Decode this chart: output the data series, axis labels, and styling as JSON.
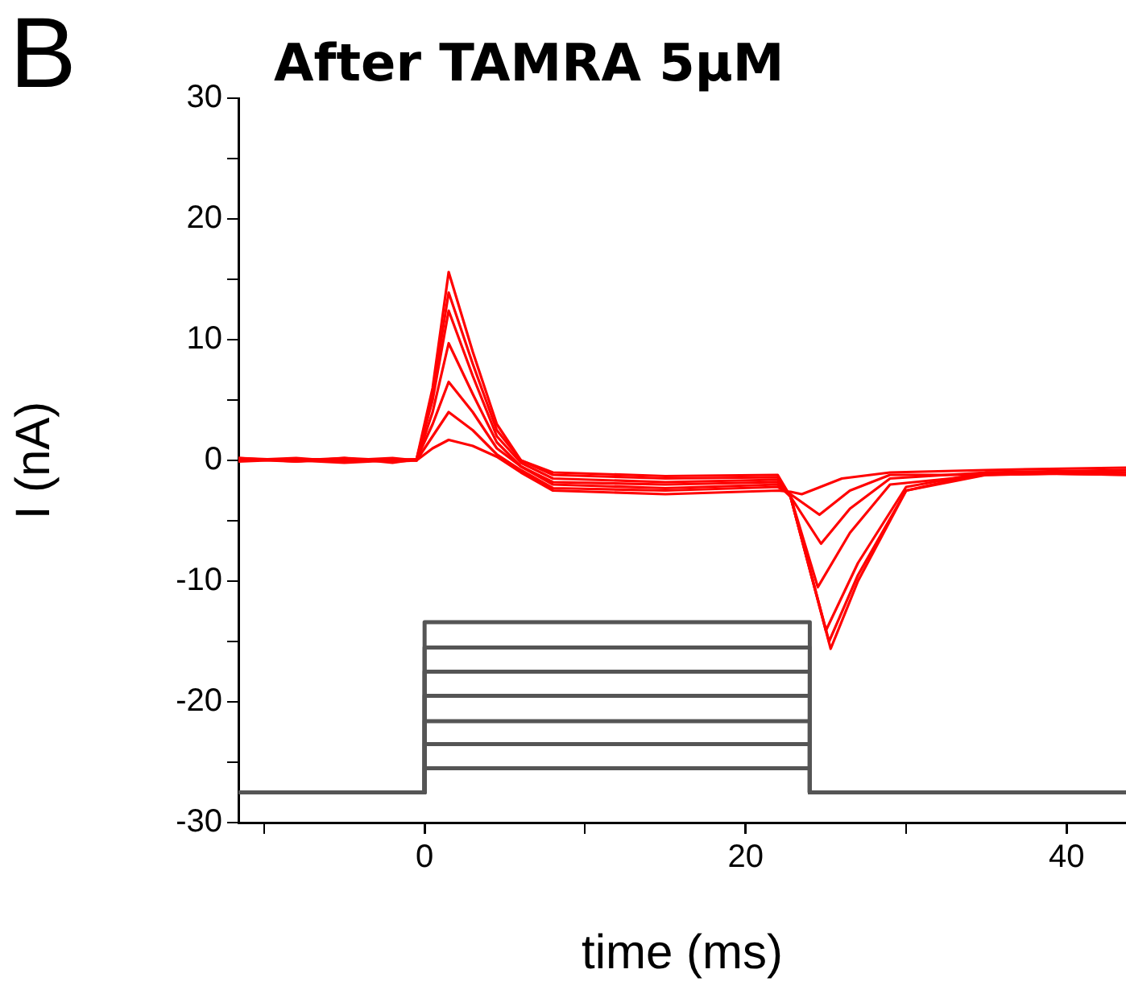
{
  "chart_data": {
    "type": "line",
    "title": "After TAMRA 5μM",
    "annotations": [
      "B"
    ],
    "xlabel": "time (ms)",
    "ylabel": "I (nA)",
    "xlim": [
      -11.6,
      43.7
    ],
    "xticks": [
      {
        "value": -10,
        "label": null
      },
      0,
      {
        "value": 10,
        "label": null
      },
      20,
      {
        "value": 30,
        "label": null
      },
      40
    ],
    "ylim": [
      -30,
      30
    ],
    "yticks": [
      -30,
      {
        "value": -25,
        "label": null
      },
      -20,
      {
        "value": -15,
        "label": null
      },
      -10,
      {
        "value": -5,
        "label": null
      },
      0,
      {
        "value": 5,
        "label": null
      },
      10,
      {
        "value": 15,
        "label": null
      },
      20,
      {
        "value": 25,
        "label": null
      },
      30
    ],
    "grid": false,
    "legend": false,
    "marker": "none",
    "line_style": "solid",
    "series": [
      {
        "color": "#ff0000",
        "x": [
          -11.6,
          -8,
          -5,
          -2,
          -0.5,
          0.5,
          1.5,
          3,
          4.5,
          6,
          8,
          15,
          22,
          22.8,
          25.3,
          27,
          30,
          35,
          43.7
        ],
        "values": [
          0.2,
          -0.1,
          0.2,
          0,
          0.1,
          6,
          15.6,
          9,
          3,
          0,
          -1,
          -1.3,
          -1.2,
          -3,
          -15.6,
          -10,
          -2.5,
          -1,
          -0.8
        ]
      },
      {
        "color": "#ff0000",
        "x": [
          -11.6,
          -8,
          -5,
          -2,
          -0.5,
          0.5,
          1.5,
          3,
          4.5,
          6,
          8,
          15,
          22,
          22.8,
          25.2,
          27,
          30,
          35,
          43.7
        ],
        "values": [
          0,
          0.2,
          -0.1,
          0.1,
          0,
          5.5,
          13.9,
          8,
          2.5,
          0,
          -1.2,
          -1.5,
          -1.4,
          -3,
          -15,
          -9.5,
          -2.5,
          -1.2,
          -1
        ]
      },
      {
        "color": "#ff0000",
        "x": [
          -11.6,
          -8,
          -5,
          -2,
          -0.5,
          0.5,
          1.5,
          3,
          4.5,
          6,
          8,
          15,
          22,
          22.8,
          25,
          27,
          30,
          35,
          43.7
        ],
        "values": [
          0.1,
          0,
          0.2,
          -0.2,
          0.1,
          5,
          12.4,
          7,
          2,
          -0.2,
          -1.5,
          -1.8,
          -1.6,
          -3,
          -14.1,
          -8.5,
          -2.2,
          -1,
          -1.2
        ]
      },
      {
        "color": "#ff0000",
        "x": [
          -11.6,
          -8,
          -5,
          -2,
          -0.5,
          0.5,
          1.5,
          3,
          4.5,
          6,
          8,
          15,
          22,
          22.8,
          24.5,
          26.5,
          29,
          35,
          43.7
        ],
        "values": [
          -0.1,
          0.1,
          0,
          0.2,
          0,
          4,
          9.7,
          5.5,
          1.5,
          -0.5,
          -1.8,
          -2,
          -1.8,
          -3,
          -10.5,
          -6,
          -2,
          -1.2,
          -0.8
        ]
      },
      {
        "color": "#ff0000",
        "x": [
          -11.6,
          -8,
          -5,
          -2,
          -0.5,
          0.5,
          1.5,
          3,
          4.5,
          6,
          8,
          15,
          22,
          22.8,
          24.7,
          26.5,
          29,
          35,
          43.7
        ],
        "values": [
          0.2,
          0,
          -0.2,
          0,
          0.1,
          3,
          6.5,
          4,
          1,
          -0.5,
          -2,
          -2.3,
          -2,
          -3,
          -6.9,
          -4,
          -1.5,
          -1,
          -1.2
        ]
      },
      {
        "color": "#ff0000",
        "x": [
          -11.6,
          -8,
          -5,
          -2,
          -0.5,
          0.5,
          1.5,
          3,
          4.5,
          6,
          8,
          15,
          22,
          22.8,
          24.6,
          26.5,
          29,
          35,
          43.7
        ],
        "values": [
          0,
          0.1,
          0.1,
          -0.1,
          0,
          2,
          4,
          2.5,
          0.5,
          -0.8,
          -2.3,
          -2.5,
          -2.2,
          -2.8,
          -4.5,
          -2.5,
          -1.2,
          -1.2,
          -1
        ]
      },
      {
        "color": "#ff0000",
        "x": [
          -11.6,
          -8,
          -5,
          -2,
          -0.5,
          0.5,
          1.5,
          3,
          4.5,
          6,
          8,
          15,
          22,
          22.8,
          23.5,
          26,
          29,
          35,
          43.7
        ],
        "values": [
          0.1,
          -0.1,
          0.1,
          0,
          0,
          1,
          1.7,
          1.2,
          0.3,
          -1,
          -2.5,
          -2.8,
          -2.5,
          -2.6,
          -2.8,
          -1.5,
          -1,
          -0.8,
          -0.6
        ]
      },
      {
        "color": "#555555",
        "x": [
          -11.6,
          0,
          0,
          24,
          24,
          43.7
        ],
        "values": [
          -27.5,
          -27.5,
          -13.4,
          -13.4,
          -27.5,
          -27.5
        ]
      },
      {
        "color": "#555555",
        "x": [
          -11.6,
          0,
          0,
          24,
          24,
          43.7
        ],
        "values": [
          -27.5,
          -27.5,
          -15.5,
          -15.5,
          -27.5,
          -27.5
        ]
      },
      {
        "color": "#555555",
        "x": [
          -11.6,
          0,
          0,
          24,
          24,
          43.7
        ],
        "values": [
          -27.5,
          -27.5,
          -17.5,
          -17.5,
          -27.5,
          -27.5
        ]
      },
      {
        "color": "#555555",
        "x": [
          -11.6,
          0,
          0,
          24,
          24,
          43.7
        ],
        "values": [
          -27.5,
          -27.5,
          -19.5,
          -19.5,
          -27.5,
          -27.5
        ]
      },
      {
        "color": "#555555",
        "x": [
          -11.6,
          0,
          0,
          24,
          24,
          43.7
        ],
        "values": [
          -27.5,
          -27.5,
          -21.6,
          -21.6,
          -27.5,
          -27.5
        ]
      },
      {
        "color": "#555555",
        "x": [
          -11.6,
          0,
          0,
          24,
          24,
          43.7
        ],
        "values": [
          -27.5,
          -27.5,
          -23.5,
          -23.5,
          -27.5,
          -27.5
        ]
      },
      {
        "color": "#555555",
        "x": [
          -11.6,
          0,
          0,
          24,
          24,
          43.7
        ],
        "values": [
          -27.5,
          -27.5,
          -25.5,
          -25.5,
          -27.5,
          -27.5
        ]
      }
    ]
  }
}
